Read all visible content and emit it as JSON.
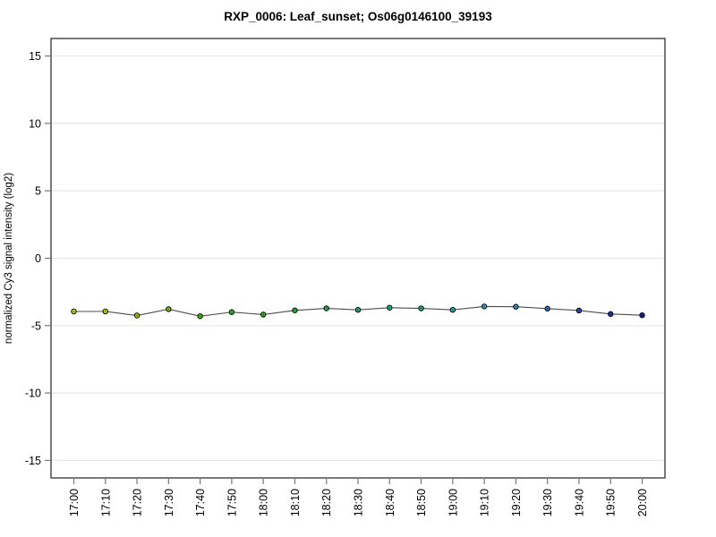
{
  "chart_data": {
    "type": "line",
    "title": "RXP_0006: Leaf_sunset; Os06g0146100_39193",
    "xlabel": "",
    "ylabel": "normalized Cy3 signal intensity (log2)",
    "x": [
      "17:00",
      "17:10",
      "17:20",
      "17:30",
      "17:40",
      "17:50",
      "18:00",
      "18:10",
      "18:20",
      "18:30",
      "18:40",
      "18:50",
      "19:00",
      "19:10",
      "19:20",
      "19:30",
      "19:40",
      "19:50",
      "20:00"
    ],
    "series": [
      {
        "name": "normalized Cy3 signal intensity (log2)",
        "values": [
          -3.95,
          -3.95,
          -4.25,
          -3.78,
          -4.3,
          -4.0,
          -4.18,
          -3.87,
          -3.72,
          -3.83,
          -3.67,
          -3.72,
          -3.83,
          -3.58,
          -3.6,
          -3.74,
          -3.88,
          -4.14,
          -4.23
        ],
        "point_colors": [
          "#e4e400",
          "#d4e200",
          "#b6da00",
          "#98d200",
          "#52c814",
          "#3ac81e",
          "#2cc828",
          "#26c63a",
          "#20c658",
          "#1ec66e",
          "#1cc684",
          "#1ec49a",
          "#22c2b4",
          "#28bcd0",
          "#30a4d8",
          "#2c80d0",
          "#2456cc",
          "#1c36c8",
          "#1c22c4"
        ]
      }
    ],
    "ylim": [
      -16.3,
      16.3
    ],
    "yticks": [
      15,
      10,
      5,
      0,
      -5,
      -10,
      -15
    ],
    "grid": "horizontal",
    "legend": "none",
    "colors": {
      "line": "#4d4d4d",
      "point_border": "#000000",
      "point_center_dot": "#00000088",
      "grid": "#e7e7e7",
      "frame": "#404040",
      "tick": "#777777",
      "text": "#000000",
      "background": "#ffffff"
    }
  }
}
